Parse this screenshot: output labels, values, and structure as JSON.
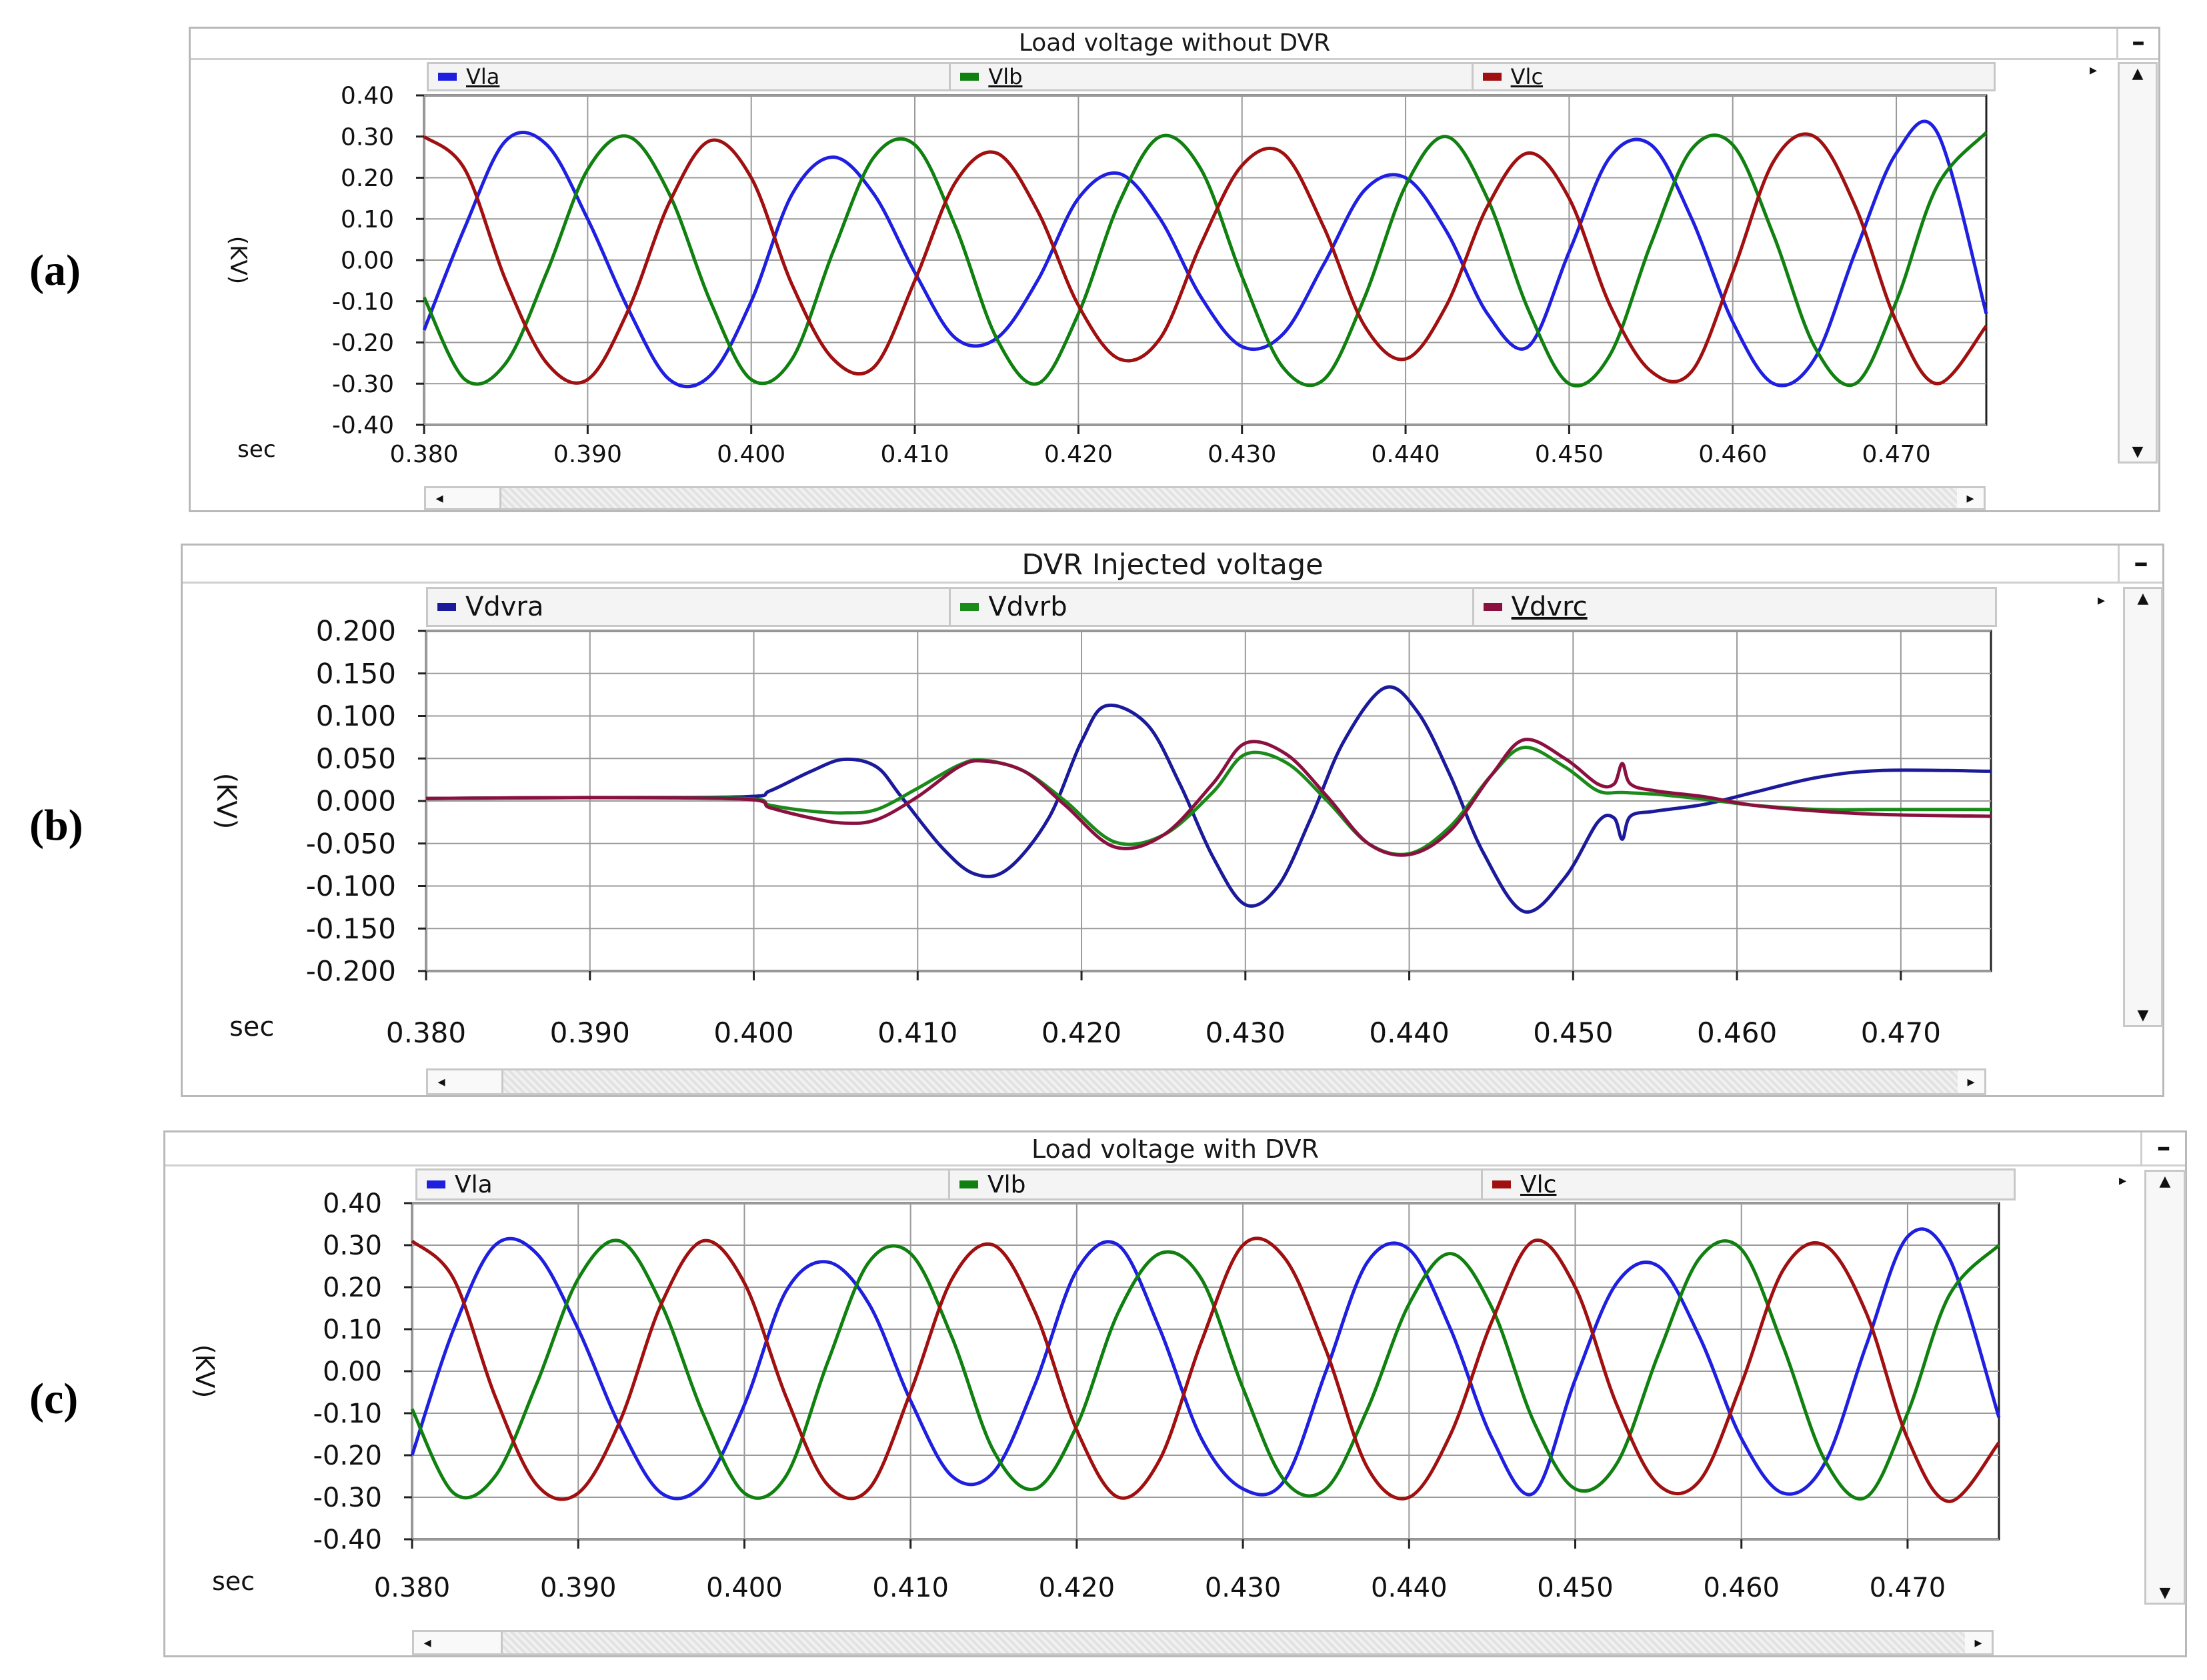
{
  "panel_labels": [
    "(a)",
    "(b)",
    "(c)"
  ],
  "chart_data": [
    {
      "type": "line",
      "title": "Load voltage without DVR",
      "xlabel": "sec",
      "ylabel": "(KV)",
      "xlim": [
        0.38,
        0.4755
      ],
      "ylim": [
        -0.4,
        0.4
      ],
      "x_ticks": [
        0.38,
        0.39,
        0.4,
        0.41,
        0.42,
        0.43,
        0.44,
        0.45,
        0.46,
        0.47
      ],
      "x_tick_labels": [
        "0.380",
        "0.390",
        "0.400",
        "0.410",
        "0.420",
        "0.430",
        "0.440",
        "0.450",
        "0.460",
        "0.470"
      ],
      "y_ticks": [
        0.4,
        0.3,
        0.2,
        0.1,
        0.0,
        -0.1,
        -0.2,
        -0.3,
        -0.4
      ],
      "y_tick_labels": [
        "0.40",
        "0.30",
        "0.20",
        "0.10",
        "0.00",
        "-0.10",
        "-0.20",
        "-0.30",
        "-0.40"
      ],
      "grid": true,
      "legend": "top",
      "series": [
        {
          "name": "Vla",
          "color": "#1f1fe0",
          "x": [
            0.38,
            0.3825,
            0.385,
            0.3875,
            0.39,
            0.3925,
            0.395,
            0.3975,
            0.4,
            0.4025,
            0.405,
            0.4075,
            0.41,
            0.4125,
            0.415,
            0.4175,
            0.42,
            0.4225,
            0.425,
            0.4275,
            0.43,
            0.4325,
            0.435,
            0.4375,
            0.44,
            0.4425,
            0.445,
            0.4475,
            0.45,
            0.4525,
            0.455,
            0.4575,
            0.46,
            0.4625,
            0.465,
            0.4675,
            0.47,
            0.4725,
            0.4755
          ],
          "y": [
            -0.17,
            0.08,
            0.29,
            0.28,
            0.1,
            -0.12,
            -0.29,
            -0.28,
            -0.1,
            0.16,
            0.25,
            0.16,
            -0.03,
            -0.19,
            -0.19,
            -0.05,
            0.15,
            0.21,
            0.1,
            -0.09,
            -0.21,
            -0.18,
            -0.01,
            0.17,
            0.2,
            0.07,
            -0.13,
            -0.21,
            0.02,
            0.25,
            0.28,
            0.1,
            -0.15,
            -0.3,
            -0.24,
            0.02,
            0.26,
            0.31,
            -0.13
          ]
        },
        {
          "name": "Vlb",
          "color": "#108010",
          "x": [
            0.38,
            0.3825,
            0.385,
            0.3875,
            0.39,
            0.3925,
            0.395,
            0.3975,
            0.4,
            0.4025,
            0.405,
            0.4075,
            0.41,
            0.4125,
            0.415,
            0.4175,
            0.42,
            0.4225,
            0.425,
            0.4275,
            0.43,
            0.4325,
            0.435,
            0.4375,
            0.44,
            0.4425,
            0.445,
            0.4475,
            0.45,
            0.4525,
            0.455,
            0.4575,
            0.46,
            0.4625,
            0.465,
            0.4675,
            0.47,
            0.4725,
            0.4755
          ],
          "y": [
            -0.09,
            -0.29,
            -0.25,
            -0.03,
            0.22,
            0.3,
            0.16,
            -0.1,
            -0.29,
            -0.24,
            0.02,
            0.25,
            0.28,
            0.08,
            -0.19,
            -0.3,
            -0.13,
            0.14,
            0.3,
            0.22,
            -0.04,
            -0.26,
            -0.29,
            -0.09,
            0.18,
            0.3,
            0.15,
            -0.12,
            -0.3,
            -0.23,
            0.04,
            0.27,
            0.28,
            0.06,
            -0.21,
            -0.3,
            -0.1,
            0.18,
            0.31
          ]
        },
        {
          "name": "Vlc",
          "color": "#a01010",
          "x": [
            0.38,
            0.3825,
            0.385,
            0.3875,
            0.39,
            0.3925,
            0.395,
            0.3975,
            0.4,
            0.4025,
            0.405,
            0.4075,
            0.41,
            0.4125,
            0.415,
            0.4175,
            0.42,
            0.4225,
            0.425,
            0.4275,
            0.43,
            0.4325,
            0.435,
            0.4375,
            0.44,
            0.4425,
            0.445,
            0.4475,
            0.45,
            0.4525,
            0.455,
            0.4575,
            0.46,
            0.4625,
            0.465,
            0.4675,
            0.47,
            0.4725,
            0.4755
          ],
          "y": [
            0.3,
            0.22,
            -0.05,
            -0.25,
            -0.29,
            -0.12,
            0.14,
            0.29,
            0.2,
            -0.06,
            -0.24,
            -0.26,
            -0.05,
            0.19,
            0.26,
            0.12,
            -0.11,
            -0.24,
            -0.19,
            0.04,
            0.23,
            0.26,
            0.08,
            -0.16,
            -0.24,
            -0.11,
            0.13,
            0.26,
            0.15,
            -0.11,
            -0.27,
            -0.27,
            -0.03,
            0.24,
            0.3,
            0.13,
            -0.15,
            -0.3,
            -0.16
          ]
        }
      ]
    },
    {
      "type": "line",
      "title": "DVR Injected voltage",
      "xlabel": "sec",
      "ylabel": "(KV)",
      "xlim": [
        0.38,
        0.4755
      ],
      "ylim": [
        -0.2,
        0.2
      ],
      "x_ticks": [
        0.38,
        0.39,
        0.4,
        0.41,
        0.42,
        0.43,
        0.44,
        0.45,
        0.46,
        0.47
      ],
      "x_tick_labels": [
        "0.380",
        "0.390",
        "0.400",
        "0.410",
        "0.420",
        "0.430",
        "0.440",
        "0.450",
        "0.460",
        "0.470"
      ],
      "y_ticks": [
        0.2,
        0.15,
        0.1,
        0.05,
        0.0,
        -0.05,
        -0.1,
        -0.15,
        -0.2
      ],
      "y_tick_labels": [
        "0.200",
        "0.150",
        "0.100",
        "0.050",
        "0.000",
        "-0.050",
        "-0.100",
        "-0.150",
        "-0.200"
      ],
      "grid": true,
      "legend": "top",
      "series": [
        {
          "name": "Vdvra",
          "color": "#1a1a9a",
          "x": [
            0.38,
            0.39,
            0.3995,
            0.401,
            0.4035,
            0.4055,
            0.4075,
            0.409,
            0.4115,
            0.4135,
            0.4155,
            0.418,
            0.42,
            0.4215,
            0.424,
            0.426,
            0.428,
            0.43,
            0.432,
            0.434,
            0.436,
            0.4385,
            0.4405,
            0.4425,
            0.4445,
            0.447,
            0.4495,
            0.4515,
            0.4525,
            0.453,
            0.4535,
            0.455,
            0.458,
            0.461,
            0.465,
            0.469,
            0.4755
          ],
          "y": [
            0.003,
            0.004,
            0.005,
            0.012,
            0.035,
            0.049,
            0.04,
            0.005,
            -0.055,
            -0.086,
            -0.08,
            -0.02,
            0.07,
            0.112,
            0.09,
            0.02,
            -0.065,
            -0.122,
            -0.1,
            -0.02,
            0.07,
            0.133,
            0.105,
            0.03,
            -0.06,
            -0.13,
            -0.09,
            -0.025,
            -0.02,
            -0.045,
            -0.018,
            -0.012,
            -0.004,
            0.01,
            0.028,
            0.036,
            0.035
          ]
        },
        {
          "name": "Vdvrb",
          "color": "#1a8a1a",
          "x": [
            0.38,
            0.39,
            0.3995,
            0.401,
            0.4035,
            0.4055,
            0.4075,
            0.41,
            0.4125,
            0.414,
            0.4165,
            0.419,
            0.422,
            0.425,
            0.428,
            0.43,
            0.4325,
            0.435,
            0.4375,
            0.44,
            0.4425,
            0.445,
            0.447,
            0.4495,
            0.4515,
            0.453,
            0.455,
            0.458,
            0.461,
            0.465,
            0.469,
            0.4755
          ],
          "y": [
            0.003,
            0.004,
            0.003,
            -0.005,
            -0.012,
            -0.014,
            -0.01,
            0.015,
            0.042,
            0.048,
            0.035,
            0.0,
            -0.048,
            -0.04,
            0.01,
            0.055,
            0.045,
            0.0,
            -0.05,
            -0.062,
            -0.03,
            0.03,
            0.063,
            0.04,
            0.012,
            0.01,
            0.008,
            0.002,
            -0.005,
            -0.01,
            -0.01,
            -0.01
          ]
        },
        {
          "name": "Vdvrc",
          "color": "#8a1040",
          "x": [
            0.38,
            0.39,
            0.3995,
            0.401,
            0.4035,
            0.4055,
            0.4075,
            0.41,
            0.4125,
            0.414,
            0.4165,
            0.419,
            0.422,
            0.425,
            0.428,
            0.43,
            0.4325,
            0.435,
            0.4375,
            0.44,
            0.4425,
            0.445,
            0.447,
            0.4495,
            0.4515,
            0.4525,
            0.453,
            0.4535,
            0.455,
            0.458,
            0.461,
            0.465,
            0.469,
            0.4755
          ],
          "y": [
            0.003,
            0.004,
            0.002,
            -0.008,
            -0.02,
            -0.026,
            -0.022,
            0.005,
            0.04,
            0.047,
            0.035,
            -0.005,
            -0.054,
            -0.04,
            0.02,
            0.068,
            0.055,
            0.005,
            -0.05,
            -0.063,
            -0.035,
            0.03,
            0.072,
            0.05,
            0.02,
            0.02,
            0.044,
            0.02,
            0.012,
            0.005,
            -0.005,
            -0.012,
            -0.016,
            -0.018
          ]
        }
      ]
    },
    {
      "type": "line",
      "title": "Load voltage with DVR",
      "xlabel": "sec",
      "ylabel": "(KV)",
      "xlim": [
        0.38,
        0.4755
      ],
      "ylim": [
        -0.4,
        0.4
      ],
      "x_ticks": [
        0.38,
        0.39,
        0.4,
        0.41,
        0.42,
        0.43,
        0.44,
        0.45,
        0.46,
        0.47
      ],
      "x_tick_labels": [
        "0.380",
        "0.390",
        "0.400",
        "0.410",
        "0.420",
        "0.430",
        "0.440",
        "0.450",
        "0.460",
        "0.470"
      ],
      "y_ticks": [
        0.4,
        0.3,
        0.2,
        0.1,
        0.0,
        -0.1,
        -0.2,
        -0.3,
        -0.4
      ],
      "y_tick_labels": [
        "0.40",
        "0.30",
        "0.20",
        "0.10",
        "0.00",
        "-0.10",
        "-0.20",
        "-0.30",
        "-0.40"
      ],
      "grid": true,
      "legend": "top",
      "series": [
        {
          "name": "Vla",
          "color": "#1f1fe0",
          "x": [
            0.38,
            0.3825,
            0.385,
            0.3875,
            0.39,
            0.3925,
            0.395,
            0.3975,
            0.4,
            0.4025,
            0.405,
            0.4075,
            0.41,
            0.4125,
            0.415,
            0.4175,
            0.42,
            0.4225,
            0.425,
            0.4275,
            0.43,
            0.4325,
            0.435,
            0.4375,
            0.44,
            0.4425,
            0.445,
            0.4475,
            0.45,
            0.4525,
            0.455,
            0.4575,
            0.46,
            0.4625,
            0.465,
            0.4675,
            0.47,
            0.4725,
            0.4755
          ],
          "y": [
            -0.2,
            0.1,
            0.3,
            0.28,
            0.1,
            -0.13,
            -0.29,
            -0.27,
            -0.08,
            0.19,
            0.26,
            0.16,
            -0.07,
            -0.25,
            -0.24,
            -0.03,
            0.24,
            0.3,
            0.1,
            -0.16,
            -0.28,
            -0.26,
            0.0,
            0.26,
            0.29,
            0.1,
            -0.16,
            -0.29,
            -0.02,
            0.21,
            0.25,
            0.08,
            -0.16,
            -0.29,
            -0.22,
            0.06,
            0.32,
            0.27,
            -0.11
          ]
        },
        {
          "name": "Vlb",
          "color": "#108010",
          "x": [
            0.38,
            0.3825,
            0.385,
            0.3875,
            0.39,
            0.3925,
            0.395,
            0.3975,
            0.4,
            0.4025,
            0.405,
            0.4075,
            0.41,
            0.4125,
            0.415,
            0.4175,
            0.42,
            0.4225,
            0.425,
            0.4275,
            0.43,
            0.4325,
            0.435,
            0.4375,
            0.44,
            0.4425,
            0.445,
            0.4475,
            0.45,
            0.4525,
            0.455,
            0.4575,
            0.46,
            0.4625,
            0.465,
            0.4675,
            0.47,
            0.4725,
            0.4755
          ],
          "y": [
            -0.09,
            -0.29,
            -0.25,
            -0.03,
            0.22,
            0.31,
            0.16,
            -0.1,
            -0.29,
            -0.25,
            0.02,
            0.26,
            0.28,
            0.08,
            -0.19,
            -0.28,
            -0.13,
            0.14,
            0.28,
            0.22,
            -0.04,
            -0.26,
            -0.28,
            -0.09,
            0.16,
            0.28,
            0.15,
            -0.12,
            -0.28,
            -0.22,
            0.04,
            0.27,
            0.29,
            0.06,
            -0.21,
            -0.3,
            -0.1,
            0.18,
            0.3
          ]
        },
        {
          "name": "Vlc",
          "color": "#a01010",
          "x": [
            0.38,
            0.3825,
            0.385,
            0.3875,
            0.39,
            0.3925,
            0.395,
            0.3975,
            0.4,
            0.4025,
            0.405,
            0.4075,
            0.41,
            0.4125,
            0.415,
            0.4175,
            0.42,
            0.4225,
            0.425,
            0.4275,
            0.43,
            0.4325,
            0.435,
            0.4375,
            0.44,
            0.4425,
            0.445,
            0.4475,
            0.45,
            0.4525,
            0.455,
            0.4575,
            0.46,
            0.4625,
            0.465,
            0.4675,
            0.47,
            0.4725,
            0.4755
          ],
          "y": [
            0.31,
            0.22,
            -0.06,
            -0.27,
            -0.29,
            -0.12,
            0.16,
            0.31,
            0.21,
            -0.06,
            -0.27,
            -0.28,
            -0.05,
            0.22,
            0.3,
            0.14,
            -0.14,
            -0.3,
            -0.21,
            0.07,
            0.3,
            0.27,
            0.05,
            -0.23,
            -0.3,
            -0.15,
            0.12,
            0.31,
            0.2,
            -0.08,
            -0.27,
            -0.26,
            -0.03,
            0.24,
            0.3,
            0.14,
            -0.16,
            -0.31,
            -0.17
          ]
        }
      ]
    }
  ]
}
